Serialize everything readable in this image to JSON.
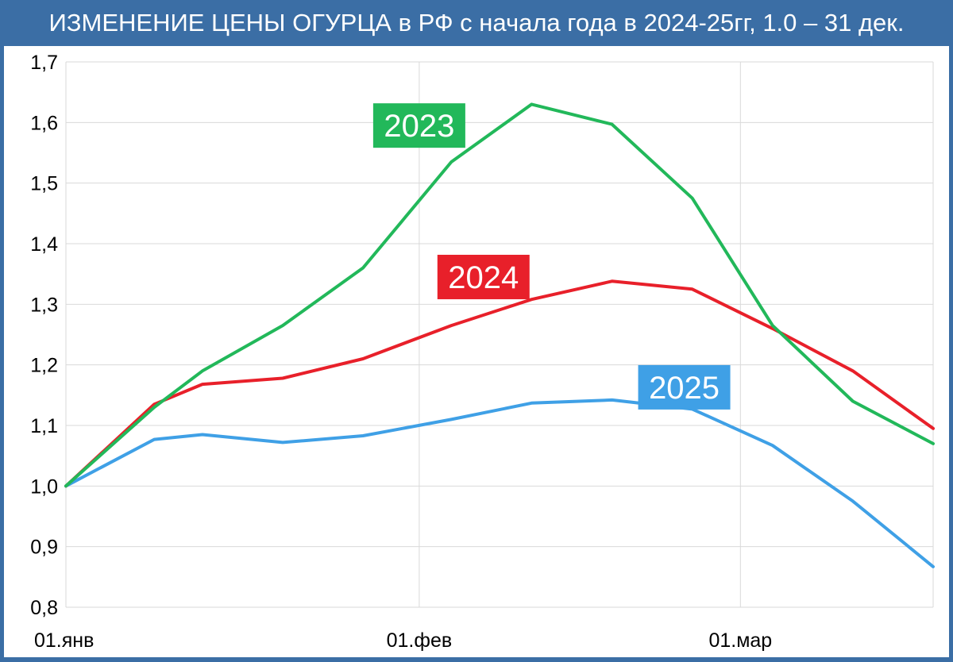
{
  "title": "ИЗМЕНЕНИЕ ЦЕНЫ ОГУРЦА в РФ с начала года в 2024-25гг, 1.0 – 31 дек.",
  "colors": {
    "frame": "#3b6ea5",
    "grid": "#d9d9d9",
    "axis_text": "#000000",
    "s2023": "#22b85a",
    "s2024": "#e8202a",
    "s2025": "#3fa0e6"
  },
  "chart_data": {
    "type": "line",
    "title": "ИЗМЕНЕНИЕ ЦЕНЫ ОГУРЦА в РФ с начала года в 2024-25гг, 1.0 – 31 дек.",
    "xlabel": "",
    "ylabel": "",
    "x": [
      0,
      11,
      17,
      27,
      37,
      48,
      58,
      68,
      78,
      88,
      98,
      108
    ],
    "xlim": [
      0,
      108
    ],
    "ylim": [
      0.8,
      1.7
    ],
    "yticks": [
      0.8,
      0.9,
      1.0,
      1.1,
      1.2,
      1.3,
      1.4,
      1.5,
      1.6,
      1.7
    ],
    "yticklabels": [
      "0,8",
      "0,9",
      "1,0",
      "1,1",
      "1,2",
      "1,3",
      "1,4",
      "1,5",
      "1,6",
      "1,7"
    ],
    "xticks": [
      {
        "x": 0,
        "label": "01.янв"
      },
      {
        "x": 44,
        "label": "01.фев"
      },
      {
        "x": 84,
        "label": "01.мар"
      }
    ],
    "grid": true,
    "series": [
      {
        "name": "2023",
        "color": "#22b85a",
        "values": [
          1.0,
          1.13,
          1.19,
          1.265,
          1.36,
          1.535,
          1.63,
          1.597,
          1.475,
          1.265,
          1.14,
          1.07
        ]
      },
      {
        "name": "2024",
        "color": "#e8202a",
        "values": [
          1.0,
          1.135,
          1.168,
          1.178,
          1.21,
          1.265,
          1.308,
          1.338,
          1.325,
          1.26,
          1.19,
          1.095
        ]
      },
      {
        "name": "2025",
        "color": "#3fa0e6",
        "values": [
          1.0,
          1.077,
          1.085,
          1.072,
          1.083,
          1.11,
          1.137,
          1.142,
          1.127,
          1.067,
          0.975,
          0.867
        ]
      }
    ],
    "annotations": [
      {
        "series": "2023",
        "text": "2023",
        "at_x": 44,
        "at_y": 1.595
      },
      {
        "series": "2024",
        "text": "2024",
        "at_x": 52,
        "at_y": 1.345
      },
      {
        "series": "2025",
        "text": "2025",
        "at_x": 77,
        "at_y": 1.163
      }
    ]
  }
}
